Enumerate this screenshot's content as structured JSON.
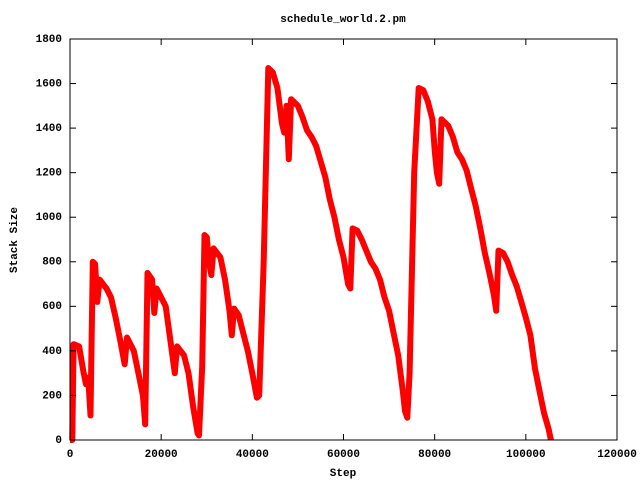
{
  "chart_data": {
    "type": "line",
    "title": "schedule_world.2.pm",
    "xlabel": "Step",
    "ylabel": "Stack Size",
    "xlim": [
      0,
      120000
    ],
    "xticks": [
      0,
      20000,
      40000,
      60000,
      80000,
      100000,
      120000
    ],
    "ylim": [
      0,
      1800
    ],
    "yticks": [
      0,
      200,
      400,
      600,
      800,
      1000,
      1200,
      1400,
      1600,
      1800
    ],
    "series": [
      {
        "color": "#ff0000",
        "x": [
          0,
          500,
          800,
          2000,
          3000,
          3500,
          4000,
          4500,
          5000,
          5500,
          6000,
          6500,
          8000,
          9000,
          10000,
          11000,
          12000,
          12500,
          14000,
          15000,
          16000,
          16500,
          17000,
          18000,
          18500,
          19000,
          21000,
          22000,
          23000,
          23500,
          25000,
          26000,
          27000,
          28000,
          28300,
          29000,
          29500,
          30000,
          30500,
          31000,
          31500,
          33000,
          34000,
          35000,
          35500,
          36000,
          37000,
          38000,
          39000,
          40000,
          41000,
          41500,
          42500,
          43500,
          44500,
          45500,
          46500,
          47000,
          47500,
          48000,
          48500,
          50000,
          51000,
          52000,
          53000,
          54000,
          55000,
          56000,
          57000,
          58000,
          59000,
          60000,
          61000,
          61500,
          62000,
          63000,
          64000,
          65000,
          66000,
          67000,
          68000,
          69000,
          70000,
          71000,
          72000,
          72500,
          73000,
          73500,
          74000,
          74500,
          75500,
          76500,
          77500,
          78500,
          79500,
          80000,
          80500,
          81000,
          81500,
          83000,
          84000,
          85000,
          86000,
          87000,
          88000,
          89000,
          90000,
          91000,
          92000,
          93000,
          93500,
          94000,
          95000,
          96000,
          97000,
          98000,
          99000,
          100000,
          101000,
          102000,
          103000,
          104000,
          105000,
          105500
        ],
        "values": [
          0,
          0,
          430,
          420,
          300,
          250,
          280,
          110,
          800,
          790,
          620,
          720,
          680,
          640,
          550,
          450,
          340,
          460,
          400,
          300,
          200,
          70,
          750,
          720,
          570,
          680,
          600,
          450,
          300,
          420,
          380,
          300,
          150,
          30,
          20,
          330,
          920,
          910,
          800,
          740,
          860,
          820,
          720,
          580,
          470,
          590,
          560,
          480,
          400,
          300,
          190,
          200,
          800,
          1670,
          1650,
          1580,
          1420,
          1380,
          1500,
          1260,
          1530,
          1500,
          1450,
          1390,
          1360,
          1320,
          1250,
          1180,
          1080,
          1000,
          900,
          820,
          700,
          680,
          950,
          940,
          900,
          850,
          800,
          770,
          720,
          640,
          580,
          480,
          380,
          300,
          220,
          130,
          100,
          300,
          1200,
          1580,
          1570,
          1520,
          1440,
          1300,
          1200,
          1150,
          1440,
          1410,
          1360,
          1290,
          1260,
          1210,
          1130,
          1050,
          950,
          840,
          750,
          650,
          580,
          850,
          840,
          800,
          740,
          690,
          620,
          550,
          470,
          320,
          220,
          120,
          50,
          0
        ]
      }
    ]
  }
}
